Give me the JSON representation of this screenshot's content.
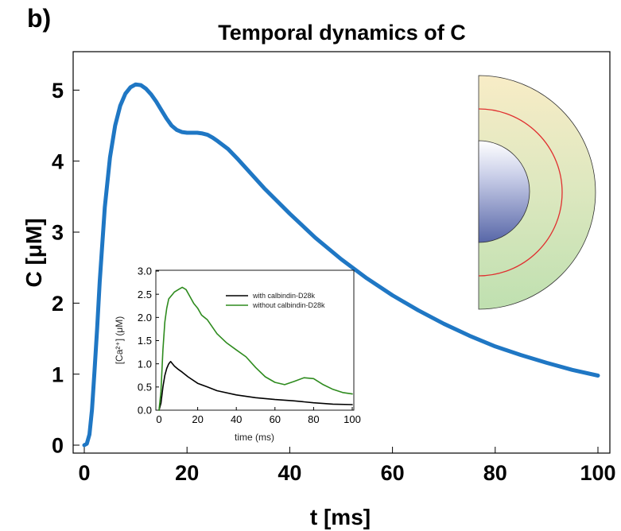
{
  "panel_label": "b)",
  "chart_data": [
    {
      "type": "line",
      "title": "Temporal dynamics of C",
      "xlabel": "t [ms]",
      "ylabel": "C [μM]",
      "xlim": [
        0,
        100
      ],
      "ylim": [
        0,
        5.2
      ],
      "xticks": [
        0,
        20,
        40,
        60,
        80,
        100
      ],
      "yticks": [
        0,
        1,
        2,
        3,
        4,
        5
      ],
      "series": [
        {
          "color": "#1f77c4",
          "x": [
            0,
            0.5,
            1,
            1.5,
            2,
            2.5,
            3,
            4,
            5,
            6,
            7,
            8,
            9,
            10,
            11,
            12,
            13,
            14,
            15,
            16,
            17,
            18,
            19,
            20,
            21,
            22,
            23,
            24,
            25,
            26,
            28,
            30,
            35,
            40,
            45,
            50,
            55,
            60,
            65,
            70,
            75,
            80,
            85,
            90,
            95,
            100
          ],
          "y": [
            0.0,
            0.02,
            0.15,
            0.5,
            1.05,
            1.65,
            2.3,
            3.35,
            4.05,
            4.5,
            4.78,
            4.95,
            5.04,
            5.08,
            5.07,
            5.02,
            4.94,
            4.84,
            4.72,
            4.6,
            4.5,
            4.44,
            4.41,
            4.4,
            4.4,
            4.4,
            4.39,
            4.37,
            4.33,
            4.28,
            4.17,
            4.02,
            3.62,
            3.26,
            2.92,
            2.62,
            2.35,
            2.11,
            1.9,
            1.71,
            1.54,
            1.39,
            1.27,
            1.16,
            1.06,
            0.98
          ]
        }
      ]
    },
    {
      "type": "line",
      "xlabel": "time (ms)",
      "ylabel": "[Ca²⁺] (μM)",
      "xlim": [
        0,
        100
      ],
      "ylim": [
        0,
        3.0
      ],
      "xticks": [
        0,
        20,
        40,
        60,
        80,
        100
      ],
      "yticks": [
        0.0,
        0.5,
        1.0,
        1.5,
        2.0,
        2.5,
        3.0
      ],
      "legend": "top-right",
      "series": [
        {
          "name": "with calbindin-D28k",
          "color": "#000000",
          "x": [
            0,
            1,
            2,
            3,
            4,
            5,
            6,
            7,
            8,
            10,
            12,
            15,
            20,
            25,
            30,
            40,
            50,
            60,
            70,
            80,
            90,
            100
          ],
          "y": [
            0.0,
            0.15,
            0.5,
            0.75,
            0.9,
            1.0,
            1.05,
            1.0,
            0.95,
            0.88,
            0.82,
            0.72,
            0.58,
            0.5,
            0.42,
            0.33,
            0.27,
            0.23,
            0.2,
            0.16,
            0.13,
            0.12
          ]
        },
        {
          "name": "without calbindin-D28k",
          "color": "#2e8b1e",
          "x": [
            0,
            1,
            2,
            3,
            4,
            5,
            6,
            7,
            8,
            10,
            12,
            14,
            16,
            18,
            20,
            22,
            25,
            30,
            35,
            40,
            45,
            50,
            55,
            60,
            65,
            70,
            75,
            80,
            85,
            90,
            95,
            100
          ],
          "y": [
            0.0,
            0.4,
            1.3,
            1.9,
            2.2,
            2.4,
            2.45,
            2.5,
            2.55,
            2.6,
            2.65,
            2.6,
            2.45,
            2.3,
            2.2,
            2.05,
            1.95,
            1.65,
            1.45,
            1.3,
            1.15,
            0.92,
            0.72,
            0.6,
            0.55,
            0.62,
            0.7,
            0.68,
            0.55,
            0.45,
            0.38,
            0.35
          ]
        }
      ]
    }
  ]
}
